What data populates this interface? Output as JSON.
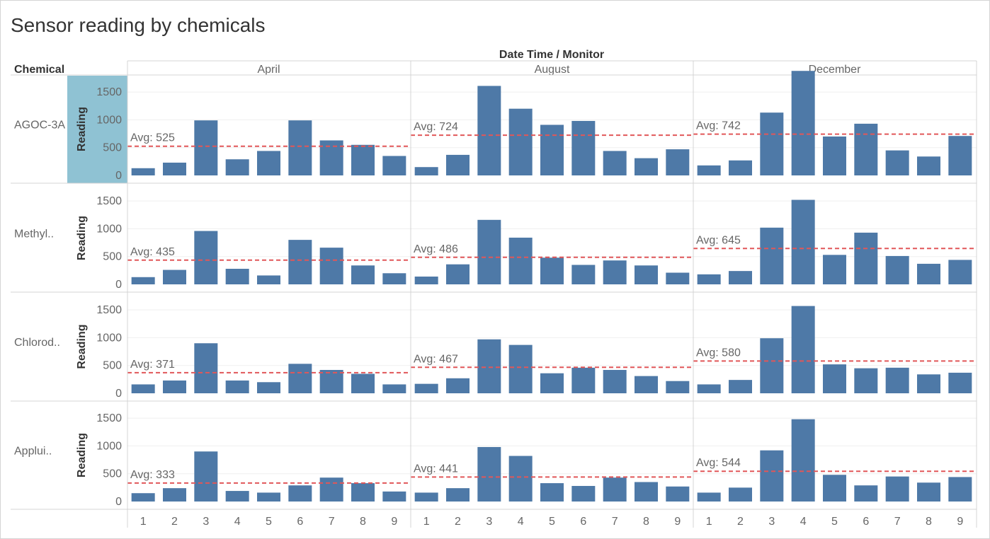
{
  "title": "Sensor reading by chemicals",
  "colors": {
    "bar": "#4e79a7",
    "avg_line": "#e15759",
    "highlight": "#8fc2d3",
    "grid": "#efefef",
    "divider": "#d4d4d4",
    "text": "#666666",
    "header_text": "#333333"
  },
  "chart_data": {
    "type": "bar",
    "column_header": "Date Time / Monitor",
    "row_header": "Chemical",
    "ylabel": "Reading",
    "ylim": [
      0,
      1900
    ],
    "yticks": [
      0,
      500,
      1000,
      1500
    ],
    "avg_prefix": "Avg: ",
    "months": [
      "April",
      "August",
      "December"
    ],
    "monitors": [
      "1",
      "2",
      "3",
      "4",
      "5",
      "6",
      "7",
      "8",
      "9"
    ],
    "rows": [
      {
        "chemical": "AGOC-3A",
        "panels": [
          {
            "month": "April",
            "avg": 525,
            "values": [
              130,
              230,
              990,
              290,
              440,
              990,
              630,
              550,
              350
            ]
          },
          {
            "month": "August",
            "avg": 724,
            "values": [
              150,
              370,
              1610,
              1200,
              910,
              980,
              440,
              310,
              470
            ]
          },
          {
            "month": "December",
            "avg": 742,
            "values": [
              180,
              270,
              1130,
              1880,
              700,
              930,
              450,
              340,
              710
            ]
          }
        ]
      },
      {
        "chemical": "Methyl..",
        "panels": [
          {
            "month": "April",
            "avg": 435,
            "values": [
              130,
              260,
              960,
              280,
              160,
              800,
              660,
              340,
              200
            ]
          },
          {
            "month": "August",
            "avg": 486,
            "values": [
              140,
              360,
              1160,
              840,
              480,
              350,
              430,
              340,
              210
            ]
          },
          {
            "month": "December",
            "avg": 645,
            "values": [
              180,
              240,
              1020,
              1520,
              530,
              930,
              510,
              370,
              440
            ]
          }
        ]
      },
      {
        "chemical": "Chlorod..",
        "panels": [
          {
            "month": "April",
            "avg": 371,
            "values": [
              160,
              230,
              900,
              230,
              200,
              530,
              420,
              350,
              160
            ]
          },
          {
            "month": "August",
            "avg": 467,
            "values": [
              170,
              270,
              970,
              870,
              360,
              460,
              420,
              310,
              220
            ]
          },
          {
            "month": "December",
            "avg": 580,
            "values": [
              160,
              240,
              990,
              1570,
              520,
              450,
              460,
              340,
              370
            ]
          }
        ]
      },
      {
        "chemical": "Applui..",
        "panels": [
          {
            "month": "April",
            "avg": 333,
            "values": [
              150,
              240,
              900,
              190,
              160,
              290,
              430,
              330,
              180
            ]
          },
          {
            "month": "August",
            "avg": 441,
            "values": [
              160,
              240,
              980,
              820,
              330,
              280,
              430,
              350,
              270
            ]
          },
          {
            "month": "December",
            "avg": 544,
            "values": [
              160,
              250,
              920,
              1480,
              480,
              290,
              450,
              340,
              440
            ]
          }
        ]
      }
    ]
  }
}
